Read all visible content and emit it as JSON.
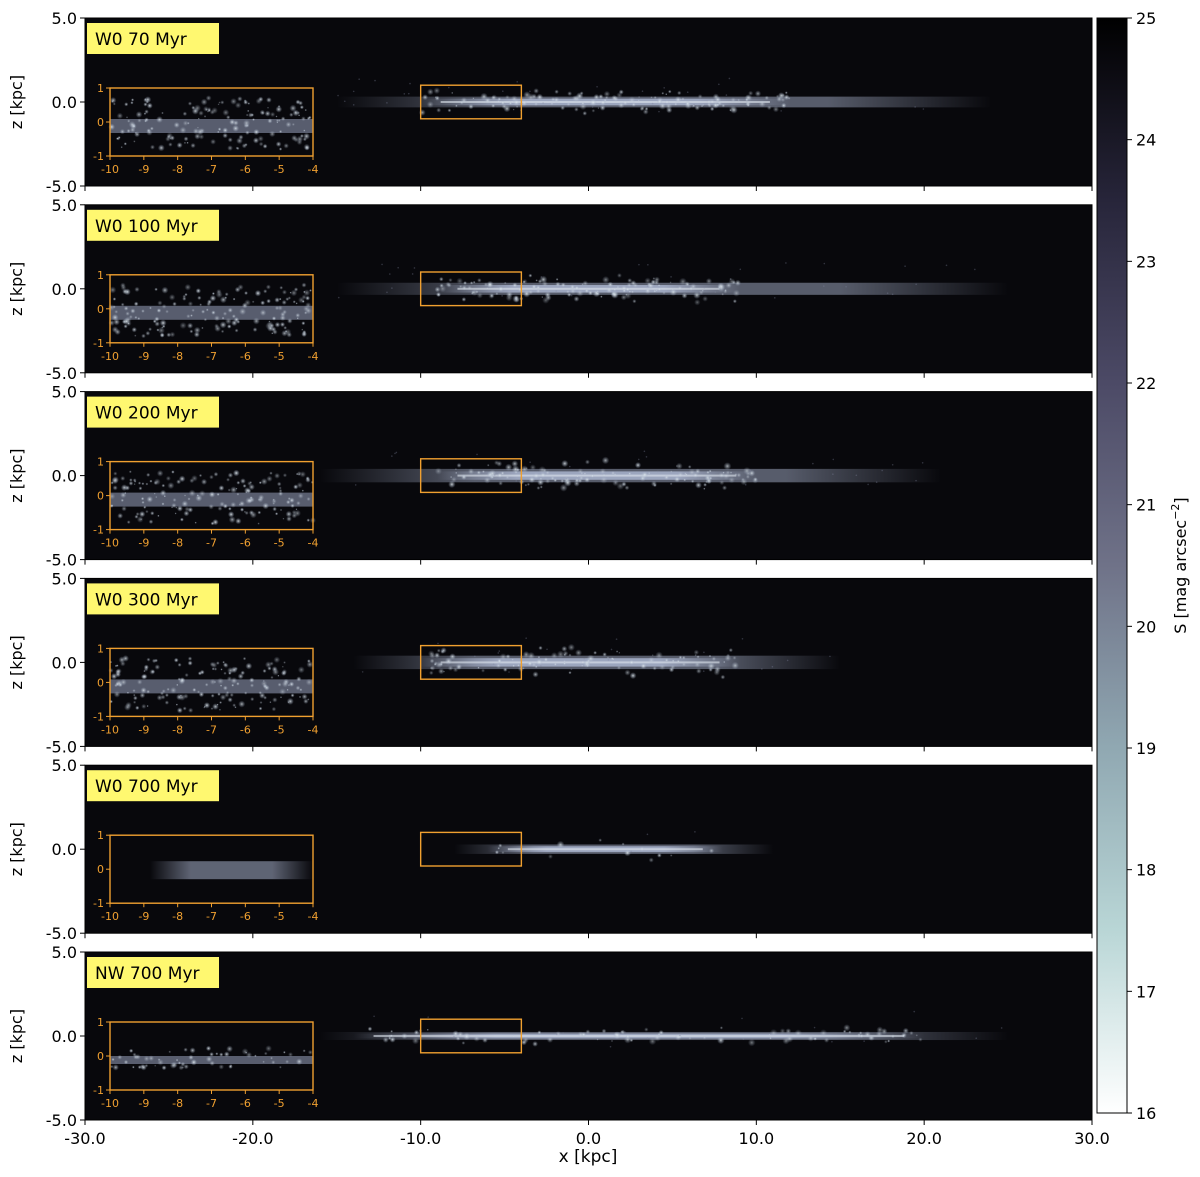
{
  "chart_data": {
    "type": "heatmap",
    "xlabel": "x [kpc]",
    "ylabel": "z [kpc]",
    "xlim": [
      -30,
      30
    ],
    "ylim": [
      -5,
      5
    ],
    "xticks": [
      "-30.0",
      "-20.0",
      "-10.0",
      "0.0",
      "10.0",
      "20.0",
      "30.0"
    ],
    "yticks": [
      "5.0",
      "0.0",
      "-5.0"
    ],
    "zoom_box": {
      "x": [
        -10,
        -4
      ],
      "z": [
        -1,
        1
      ]
    },
    "inset": {
      "xticks": [
        "-10",
        "-9",
        "-8",
        "-7",
        "-6",
        "-5",
        "-4"
      ],
      "yticks": [
        "1",
        "0",
        "-1"
      ],
      "color": "#f0a030"
    },
    "colorbar": {
      "label": "S [mag arcsec",
      "label_exp": "−2",
      "label_close": "]",
      "range": [
        16,
        25
      ],
      "ticks": [
        "25",
        "24",
        "23",
        "22",
        "21",
        "20",
        "19",
        "18",
        "17",
        "16"
      ],
      "colors": [
        "#ffffff",
        "#b9d6d6",
        "#90a8b2",
        "#6f7288",
        "#4c4a66",
        "#27253a",
        "#000000"
      ]
    },
    "panels": [
      {
        "label": "W0 70 Myr",
        "disk_extent": [
          -15,
          24
        ],
        "bright_extent": [
          -10,
          12
        ],
        "thickness": 0.4,
        "clumps": 1.0,
        "inset_style": "clumpy"
      },
      {
        "label": "W0 100 Myr",
        "disk_extent": [
          -15,
          25
        ],
        "bright_extent": [
          -9,
          9
        ],
        "thickness": 0.45,
        "clumps": 1.0,
        "inset_style": "clumpy"
      },
      {
        "label": "W0 200 Myr",
        "disk_extent": [
          -16,
          21
        ],
        "bright_extent": [
          -9,
          10
        ],
        "thickness": 0.5,
        "clumps": 0.9,
        "inset_style": "clumpy"
      },
      {
        "label": "W0 300 Myr",
        "disk_extent": [
          -14,
          15
        ],
        "bright_extent": [
          -10,
          9
        ],
        "thickness": 0.5,
        "clumps": 0.8,
        "inset_style": "clumpy"
      },
      {
        "label": "W0 700 Myr",
        "disk_extent": [
          -8,
          11
        ],
        "bright_extent": [
          -6,
          8
        ],
        "thickness": 0.35,
        "clumps": 0.1,
        "inset_style": "diffuse"
      },
      {
        "label": "NW 700 Myr",
        "disk_extent": [
          -16,
          25
        ],
        "bright_extent": [
          -14,
          20
        ],
        "thickness": 0.3,
        "clumps": 0.6,
        "inset_style": "thin"
      }
    ]
  }
}
